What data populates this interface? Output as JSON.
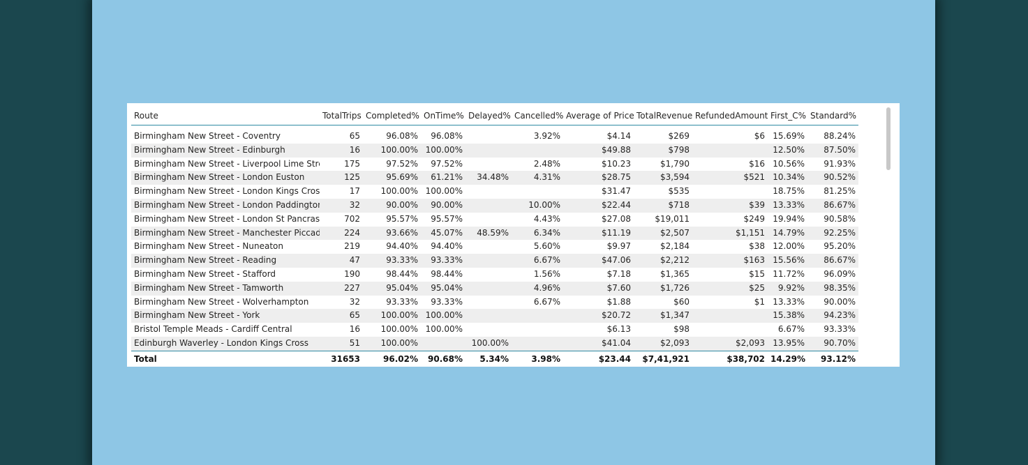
{
  "columns": [
    "Route",
    "TotalTrips",
    "Completed%",
    "OnTime%",
    "Delayed%",
    "Cancelled%",
    "Average of Price",
    "TotalRevenue",
    "RefundedAmount",
    "First_C%",
    "Standard%"
  ],
  "rows": [
    [
      "Birmingham New Street - Coventry",
      "65",
      "96.08%",
      "96.08%",
      "",
      "3.92%",
      "$4.14",
      "$269",
      "$6",
      "15.69%",
      "88.24%"
    ],
    [
      "Birmingham New Street - Edinburgh",
      "16",
      "100.00%",
      "100.00%",
      "",
      "",
      "$49.88",
      "$798",
      "",
      "12.50%",
      "87.50%"
    ],
    [
      "Birmingham New Street - Liverpool Lime Street",
      "175",
      "97.52%",
      "97.52%",
      "",
      "2.48%",
      "$10.23",
      "$1,790",
      "$16",
      "10.56%",
      "91.93%"
    ],
    [
      "Birmingham New Street - London Euston",
      "125",
      "95.69%",
      "61.21%",
      "34.48%",
      "4.31%",
      "$28.75",
      "$3,594",
      "$521",
      "10.34%",
      "90.52%"
    ],
    [
      "Birmingham New Street - London Kings Cross",
      "17",
      "100.00%",
      "100.00%",
      "",
      "",
      "$31.47",
      "$535",
      "",
      "18.75%",
      "81.25%"
    ],
    [
      "Birmingham New Street - London Paddington",
      "32",
      "90.00%",
      "90.00%",
      "",
      "10.00%",
      "$22.44",
      "$718",
      "$39",
      "13.33%",
      "86.67%"
    ],
    [
      "Birmingham New Street - London St Pancras",
      "702",
      "95.57%",
      "95.57%",
      "",
      "4.43%",
      "$27.08",
      "$19,011",
      "$249",
      "19.94%",
      "90.58%"
    ],
    [
      "Birmingham New Street - Manchester Piccadilly",
      "224",
      "93.66%",
      "45.07%",
      "48.59%",
      "6.34%",
      "$11.19",
      "$2,507",
      "$1,151",
      "14.79%",
      "92.25%"
    ],
    [
      "Birmingham New Street - Nuneaton",
      "219",
      "94.40%",
      "94.40%",
      "",
      "5.60%",
      "$9.97",
      "$2,184",
      "$38",
      "12.00%",
      "95.20%"
    ],
    [
      "Birmingham New Street - Reading",
      "47",
      "93.33%",
      "93.33%",
      "",
      "6.67%",
      "$47.06",
      "$2,212",
      "$163",
      "15.56%",
      "86.67%"
    ],
    [
      "Birmingham New Street - Stafford",
      "190",
      "98.44%",
      "98.44%",
      "",
      "1.56%",
      "$7.18",
      "$1,365",
      "$15",
      "11.72%",
      "96.09%"
    ],
    [
      "Birmingham New Street - Tamworth",
      "227",
      "95.04%",
      "95.04%",
      "",
      "4.96%",
      "$7.60",
      "$1,726",
      "$25",
      "9.92%",
      "98.35%"
    ],
    [
      "Birmingham New Street - Wolverhampton",
      "32",
      "93.33%",
      "93.33%",
      "",
      "6.67%",
      "$1.88",
      "$60",
      "$1",
      "13.33%",
      "90.00%"
    ],
    [
      "Birmingham New Street - York",
      "65",
      "100.00%",
      "100.00%",
      "",
      "",
      "$20.72",
      "$1,347",
      "",
      "15.38%",
      "94.23%"
    ],
    [
      "Bristol Temple Meads - Cardiff Central",
      "16",
      "100.00%",
      "100.00%",
      "",
      "",
      "$6.13",
      "$98",
      "",
      "6.67%",
      "93.33%"
    ],
    [
      "Edinburgh Waverley - London Kings Cross",
      "51",
      "100.00%",
      "",
      "100.00%",
      "",
      "$41.04",
      "$2,093",
      "$2,093",
      "13.95%",
      "90.70%"
    ]
  ],
  "total": [
    "Total",
    "31653",
    "96.02%",
    "90.68%",
    "5.34%",
    "3.98%",
    "$23.44",
    "$7,41,921",
    "$38,702",
    "14.29%",
    "93.12%"
  ],
  "colors": {
    "outer_background": "#1b474e",
    "canvas_background": "#8ec6e5",
    "visual_background": "#ffffff",
    "row_alternate": "#eeeeee",
    "divider": "#2e8aa3",
    "text": "#252423"
  }
}
